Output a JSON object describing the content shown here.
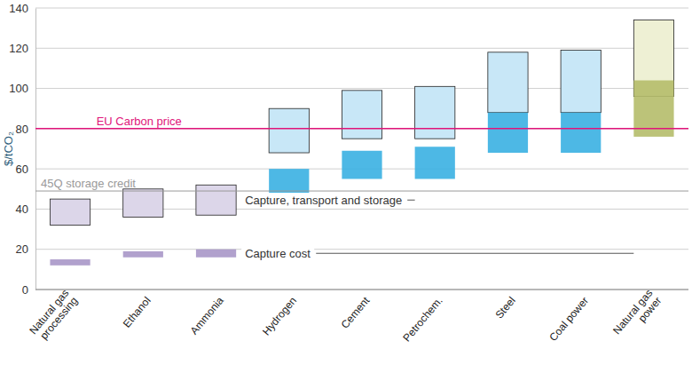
{
  "chart_data": {
    "type": "floating_bar",
    "y_label": "$/tCO₂",
    "categories": [
      "Natural gas\nprocessing",
      "Ethanol",
      "Ammonia",
      "Hydrogen",
      "Cement",
      "Petrochem.",
      "Steel",
      "Coal power",
      "Natural gas\npower"
    ],
    "series": [
      {
        "name": "Capture cost",
        "low": [
          12,
          16,
          16,
          48,
          55,
          55,
          68,
          68,
          76
        ],
        "high": [
          15,
          19,
          20,
          60,
          69,
          71,
          88,
          88,
          104
        ],
        "colors": [
          "#a897c8",
          "#a897c8",
          "#a897c8",
          "#3ab0e2",
          "#3ab0e2",
          "#3ab0e2",
          "#3ab0e2",
          "#3ab0e2",
          "#b5bc6a"
        ]
      },
      {
        "name": "Capture, transport and storage",
        "low": [
          32,
          36,
          37,
          68,
          75,
          75,
          88,
          88,
          96
        ],
        "high": [
          45,
          50,
          52,
          90,
          99,
          101,
          118,
          119,
          134
        ],
        "colors": [
          "#dcd6e9",
          "#dcd6e9",
          "#dcd6e9",
          "#c8e7f7",
          "#c8e7f7",
          "#c8e7f7",
          "#c8e7f7",
          "#c8e7f7",
          "#eef0d4"
        ]
      }
    ],
    "annotations": [
      {
        "label": "EU Carbon price",
        "value": 80,
        "color": "#e0157a"
      },
      {
        "label": "45Q storage credit",
        "value": 49,
        "color": "#9a9a9a"
      }
    ],
    "ylim": [
      0,
      140
    ],
    "yticks": [
      0,
      20,
      40,
      60,
      80,
      100,
      120,
      140
    ],
    "grid": true
  }
}
